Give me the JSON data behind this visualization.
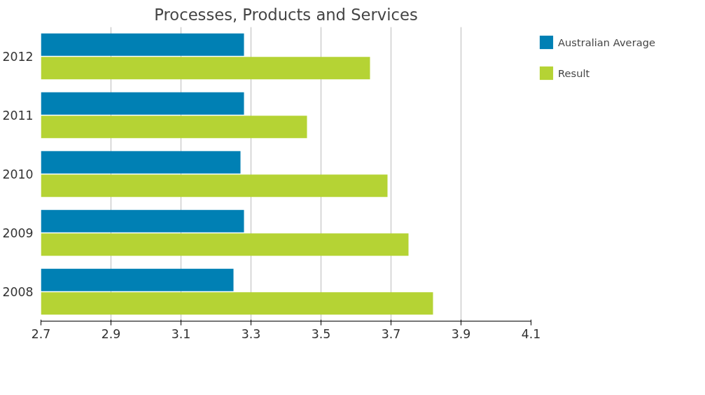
{
  "chart_data": {
    "type": "bar",
    "orientation": "horizontal",
    "title": "Processes, Products and Services",
    "categories": [
      "2012",
      "2011",
      "2010",
      "2009",
      "2008"
    ],
    "series": [
      {
        "name": "Australian Average",
        "color": "#0080b4",
        "values": [
          3.28,
          3.28,
          3.27,
          3.28,
          3.25
        ]
      },
      {
        "name": "Result",
        "color": "#b5d334",
        "values": [
          3.64,
          3.46,
          3.69,
          3.75,
          3.82
        ]
      }
    ],
    "xlim": [
      2.7,
      4.1
    ],
    "xticks": [
      2.7,
      2.9,
      3.1,
      3.3,
      3.5,
      3.7,
      3.9,
      4.1
    ],
    "grid": "x",
    "legend": "right"
  }
}
